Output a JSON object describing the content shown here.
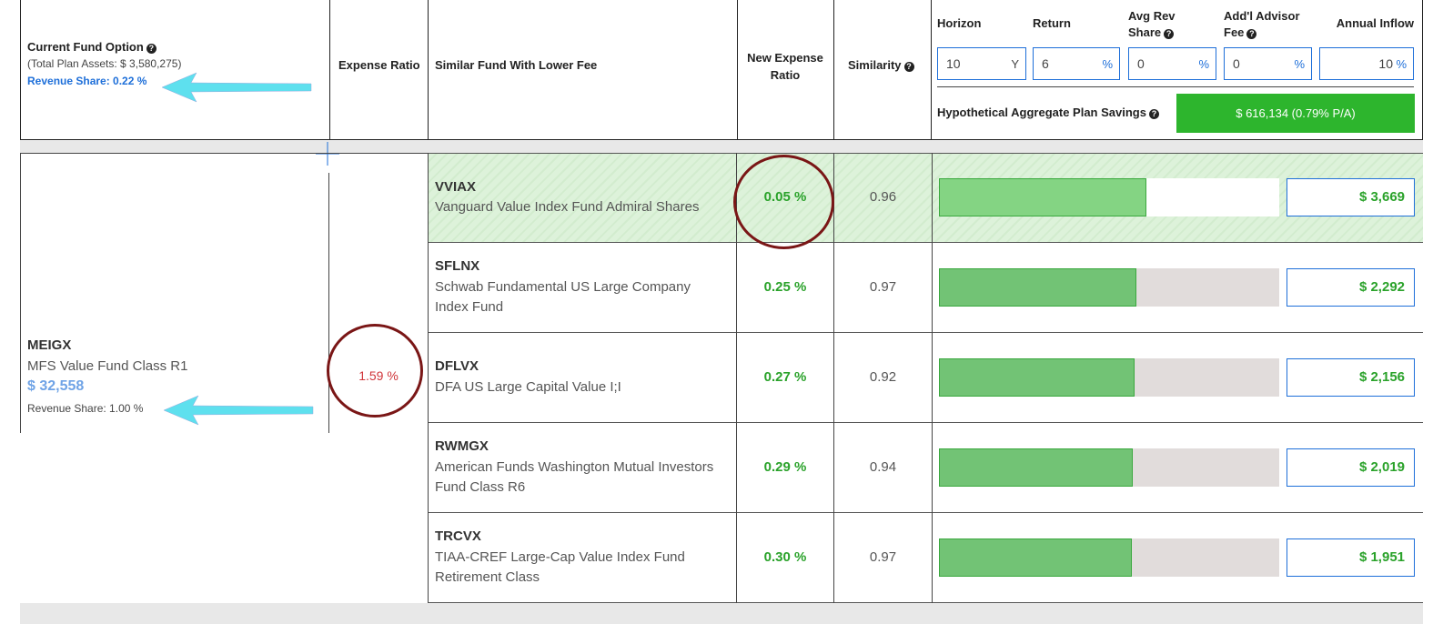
{
  "header": {
    "current_fund_option": "Current Fund Option",
    "total_plan_assets": "(Total Plan Assets: $ 3,580,275)",
    "revenue_share": "Revenue Share: 0.22 %",
    "expense_ratio": "Expense Ratio",
    "similar_fund": "Similar Fund With Lower Fee",
    "new_expense_ratio_line1": "New Expense",
    "new_expense_ratio_line2": "Ratio",
    "similarity": "Similarity",
    "controls": {
      "horizon": {
        "label": "Horizon",
        "value": "10",
        "unit": "Y"
      },
      "return": {
        "label": "Return",
        "value": "6",
        "unit": "%"
      },
      "avg_rev_share": {
        "label_line1": "Avg Rev",
        "label_line2": "Share",
        "value": "0",
        "unit": "%"
      },
      "advisor_fee": {
        "label_line1": "Add'l Advisor",
        "label_line2": "Fee",
        "value": "0",
        "unit": "%"
      },
      "annual_inflow": {
        "label": "Annual Inflow",
        "value": "10",
        "unit": "%"
      }
    },
    "aggregate_label": "Hypothetical Aggregate Plan Savings",
    "aggregate_value": "$ 616,134 (0.79% P/A)"
  },
  "current_fund": {
    "ticker": "MEIGX",
    "name": "MFS Value Fund Class R1",
    "amount": "$ 32,558",
    "revenue_share": "Revenue Share: 1.00 %",
    "expense_ratio": "1.59 %"
  },
  "alternatives": [
    {
      "ticker": "VVIAX",
      "name": "Vanguard Value Index Fund Admiral Shares",
      "new_expense_ratio": "0.05 %",
      "similarity": "0.96",
      "savings": "$ 3,669",
      "savings_fraction": 0.61
    },
    {
      "ticker": "SFLNX",
      "name": "Schwab Fundamental US Large Company Index Fund",
      "new_expense_ratio": "0.25 %",
      "similarity": "0.97",
      "savings": "$ 2,292",
      "savings_fraction": 0.58
    },
    {
      "ticker": "DFLVX",
      "name": "DFA US Large Capital Value I;I",
      "new_expense_ratio": "0.27 %",
      "similarity": "0.92",
      "savings": "$ 2,156",
      "savings_fraction": 0.575
    },
    {
      "ticker": "RWMGX",
      "name": "American Funds Washington Mutual Investors Fund Class R6",
      "new_expense_ratio": "0.29 %",
      "similarity": "0.94",
      "savings": "$ 2,019",
      "savings_fraction": 0.57
    },
    {
      "ticker": "TRCVX",
      "name": "TIAA-CREF Large-Cap Value Index Fund Retirement Class",
      "new_expense_ratio": "0.30 %",
      "similarity": "0.97",
      "savings": "$ 1,951",
      "savings_fraction": 0.567
    }
  ],
  "colors": {
    "accent_blue": "#1e6fd9",
    "green": "#2aa22a",
    "savings_button": "#2db52d",
    "arrow": "#5ee0ee",
    "circle": "#7a1616",
    "expense_red": "#d0353a"
  }
}
